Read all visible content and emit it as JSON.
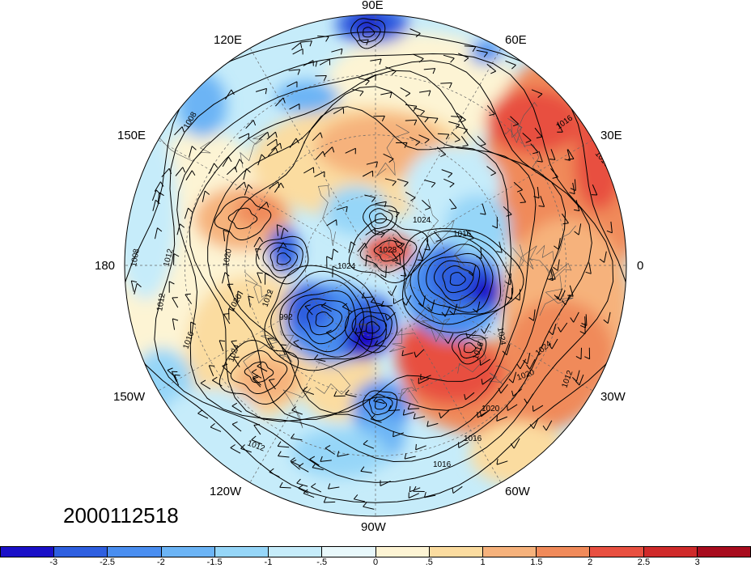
{
  "timestamp": "2000112518",
  "longitude_labels": {
    "e90": "90E",
    "e60": "60E",
    "e120": "120E",
    "e30": "30E",
    "e150": "150E",
    "lon180": "180",
    "lon0": "0",
    "w150": "150W",
    "w30": "30W",
    "w120": "120W",
    "w60": "60W",
    "w90": "90W"
  },
  "contour_labels": [
    "1016",
    "1008",
    "1016",
    "1012",
    "1008",
    "1020",
    "1020",
    "1012",
    "1016",
    "1024",
    "1024",
    "1028",
    "1024",
    "1024",
    "1016",
    "1016",
    "1024",
    "992",
    "1012",
    "1016",
    "1020",
    "1020",
    "1016",
    "1012",
    "1012"
  ],
  "colorbar": {
    "colors": [
      "#1a10c8",
      "#2e5fe0",
      "#4a8ef0",
      "#6cb4f5",
      "#96d6f8",
      "#c6ecfa",
      "#e8f8fb",
      "#fdf4d4",
      "#fbdca0",
      "#f6b27c",
      "#f08a5a",
      "#e85040",
      "#cf2a2a",
      "#a80c1e"
    ],
    "ticks": [
      "-3",
      "-2.5",
      "-2",
      "-1.5",
      "-1",
      "-.5",
      "0",
      ".5",
      "1",
      "1.5",
      "2",
      "2.5",
      "3"
    ]
  }
}
